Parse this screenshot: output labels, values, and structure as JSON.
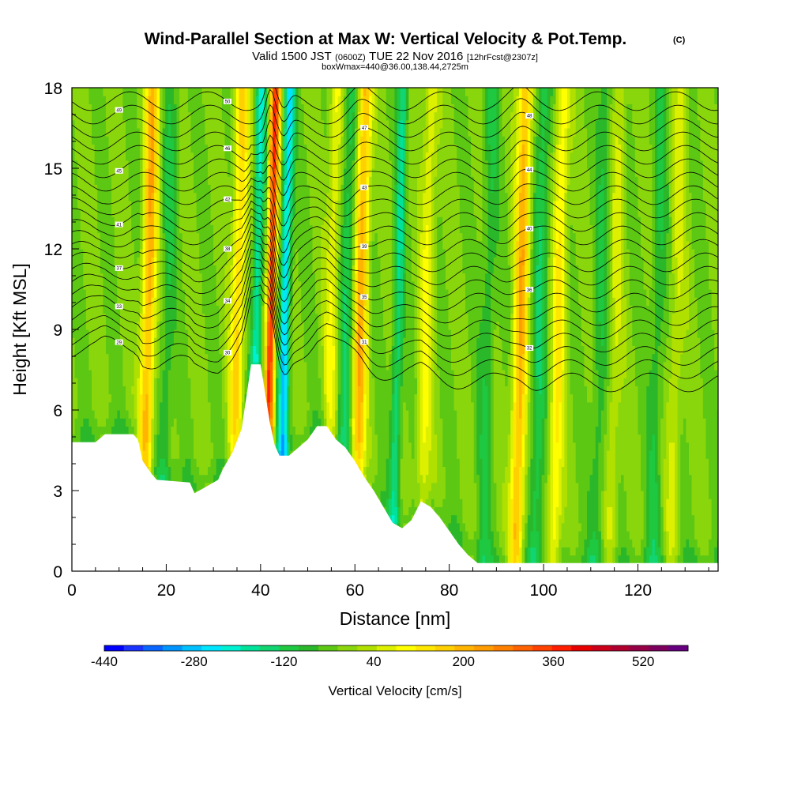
{
  "chart_data": {
    "type": "heatmap",
    "title": "Wind-Parallel Section at Max W: Vertical Velocity & Pot.Temp.",
    "title_mark": "(C)",
    "subtitle": {
      "valid_prefix": "Valid 1500 JST",
      "utc": "(0600Z)",
      "date": "TUE 22 Nov 2016",
      "forecast": "[12hrFcst@2307z]"
    },
    "box_note": "boxWmax=440@36.00,138.44,2725m",
    "xlabel": "Distance [nm]",
    "ylabel": "Height [Kft MSL]",
    "xlim": [
      0,
      137
    ],
    "ylim": [
      0,
      18
    ],
    "x_ticks": [
      0,
      20,
      40,
      60,
      80,
      100,
      120
    ],
    "y_ticks": [
      0,
      3,
      6,
      9,
      12,
      15,
      18
    ],
    "colorbar": {
      "title": "Vertical Velocity [cm/s]",
      "min": -440,
      "max": 600,
      "step": 40,
      "tick_labels": [
        "-440",
        "-280",
        "-120",
        "40",
        "200",
        "360",
        "520"
      ],
      "colors": [
        "#0000ff",
        "#1a33ff",
        "#0a66ff",
        "#0094ff",
        "#00c0ff",
        "#00e5ff",
        "#00f0d2",
        "#00e29a",
        "#12d470",
        "#1ec840",
        "#2ab82a",
        "#5cc814",
        "#8ad60c",
        "#b0e000",
        "#ddf000",
        "#ffff00",
        "#ffe800",
        "#ffd000",
        "#ffb400",
        "#ff9c00",
        "#ff8000",
        "#ff6200",
        "#ff4200",
        "#ff1e00",
        "#e80000",
        "#cc0018",
        "#b00030",
        "#960046",
        "#7e005e",
        "#660080"
      ]
    },
    "terrain": [
      [
        0,
        4.8
      ],
      [
        5,
        4.8
      ],
      [
        7,
        5.1
      ],
      [
        13,
        5.1
      ],
      [
        14,
        4.9
      ],
      [
        15,
        4.1
      ],
      [
        17,
        3.6
      ],
      [
        18,
        3.4
      ],
      [
        25,
        3.3
      ],
      [
        26,
        2.9
      ],
      [
        29,
        3.2
      ],
      [
        31,
        3.4
      ],
      [
        32,
        3.8
      ],
      [
        34,
        4.4
      ],
      [
        36,
        5.3
      ],
      [
        37,
        6.5
      ],
      [
        38,
        7.7
      ],
      [
        40,
        7.7
      ],
      [
        41,
        6.6
      ],
      [
        42,
        5.5
      ],
      [
        43,
        4.7
      ],
      [
        44,
        4.3
      ],
      [
        46,
        4.3
      ],
      [
        48,
        4.6
      ],
      [
        50,
        4.9
      ],
      [
        52,
        5.4
      ],
      [
        54,
        5.4
      ],
      [
        56,
        4.9
      ],
      [
        58,
        4.6
      ],
      [
        60,
        4.1
      ],
      [
        62,
        3.5
      ],
      [
        64,
        3.0
      ],
      [
        66,
        2.4
      ],
      [
        68,
        1.8
      ],
      [
        70,
        1.6
      ],
      [
        72,
        1.9
      ],
      [
        74,
        2.6
      ],
      [
        76,
        2.4
      ],
      [
        78,
        2.0
      ],
      [
        80,
        1.5
      ],
      [
        82,
        1.0
      ],
      [
        84,
        0.6
      ],
      [
        86,
        0.3
      ],
      [
        137,
        0.3
      ]
    ],
    "updrafts": [
      {
        "x": 16,
        "w": 260
      },
      {
        "x": 35,
        "w": 200
      },
      {
        "x": 42,
        "w": 440
      },
      {
        "x": 55,
        "w": 120
      },
      {
        "x": 61,
        "w": 260
      },
      {
        "x": 75,
        "w": 120
      },
      {
        "x": 95,
        "w": 260
      },
      {
        "x": 103,
        "w": 160
      },
      {
        "x": 115,
        "w": 80
      },
      {
        "x": 128,
        "w": 80
      }
    ],
    "downdrafts": [
      {
        "x": 20,
        "w": -80
      },
      {
        "x": 39,
        "w": -200
      },
      {
        "x": 45,
        "w": -280
      },
      {
        "x": 58,
        "w": -120
      },
      {
        "x": 69,
        "w": -160
      },
      {
        "x": 88,
        "w": -80
      },
      {
        "x": 99,
        "w": -120
      },
      {
        "x": 112,
        "w": -80
      },
      {
        "x": 124,
        "w": -80
      }
    ],
    "theta_levels": [
      {
        "label": "29",
        "base": 7.0
      },
      {
        "label": "30",
        "base": 7.5
      },
      {
        "label": "31",
        "base": 8.0
      },
      {
        "label": "32",
        "base": 8.5
      },
      {
        "label": "33",
        "base": 9.0
      },
      {
        "label": "34",
        "base": 9.5
      },
      {
        "label": "35",
        "base": 10.0
      },
      {
        "label": "36",
        "base": 10.5
      },
      {
        "label": "37",
        "base": 11.0
      },
      {
        "label": "38",
        "base": 11.5
      },
      {
        "label": "39",
        "base": 12.0
      },
      {
        "label": "40",
        "base": 12.5
      },
      {
        "label": "41",
        "base": 13.0
      },
      {
        "label": "42",
        "base": 13.5
      },
      {
        "label": "43",
        "base": 14.0
      },
      {
        "label": "44",
        "base": 14.5
      },
      {
        "label": "45",
        "base": 15.0
      },
      {
        "label": "46",
        "base": 15.5
      },
      {
        "label": "47",
        "base": 16.0
      },
      {
        "label": "48",
        "base": 16.5
      },
      {
        "label": "49",
        "base": 17.0
      },
      {
        "label": "50",
        "base": 17.5
      }
    ]
  }
}
